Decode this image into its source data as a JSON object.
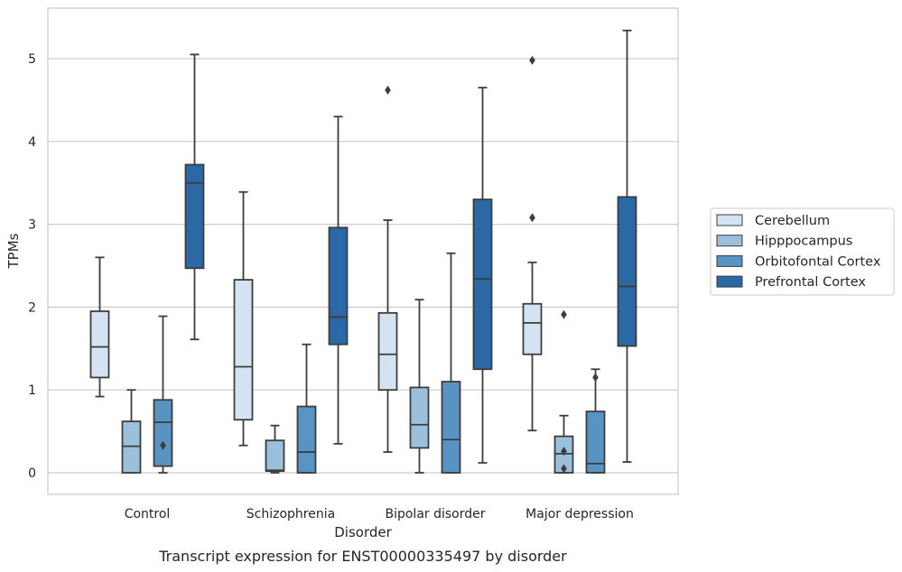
{
  "chart_data": {
    "type": "box",
    "caption": "Transcript expression for ENST00000335497 by disorder",
    "xlabel": "Disorder",
    "ylabel": "TPMs",
    "ylim": [
      -0.25,
      5.6
    ],
    "yticks": [
      0,
      1,
      2,
      3,
      4,
      5
    ],
    "grid": true,
    "legend_position": "right",
    "categories": [
      "Control",
      "Schizophrenia",
      "Bipolar disorder",
      "Major depression"
    ],
    "series": [
      {
        "name": "Cerebellum",
        "color": "#d4e3f2",
        "boxes": [
          {
            "whislo": 0.92,
            "q1": 1.15,
            "med": 1.52,
            "q3": 1.95,
            "whishi": 2.6,
            "fliers": []
          },
          {
            "whislo": 0.33,
            "q1": 0.64,
            "med": 1.28,
            "q3": 2.33,
            "whishi": 3.39,
            "fliers": []
          },
          {
            "whislo": 0.25,
            "q1": 1.0,
            "med": 1.43,
            "q3": 1.93,
            "whishi": 3.05,
            "fliers": [
              4.62
            ]
          },
          {
            "whislo": 0.51,
            "q1": 1.43,
            "med": 1.81,
            "q3": 2.04,
            "whishi": 2.54,
            "fliers": [
              3.08,
              4.98
            ]
          }
        ]
      },
      {
        "name": "Hipppocampus",
        "color": "#9ac0dc",
        "boxes": [
          {
            "whislo": 0.0,
            "q1": 0.0,
            "med": 0.32,
            "q3": 0.62,
            "whishi": 1.0,
            "fliers": []
          },
          {
            "whislo": 0.0,
            "q1": 0.02,
            "med": 0.03,
            "q3": 0.39,
            "whishi": 0.57,
            "fliers": []
          },
          {
            "whislo": 0.0,
            "q1": 0.3,
            "med": 0.58,
            "q3": 1.03,
            "whishi": 2.09,
            "fliers": []
          },
          {
            "whislo": 0.0,
            "q1": 0.0,
            "med": 0.23,
            "q3": 0.44,
            "whishi": 0.69,
            "fliers": [
              0.05,
              0.26,
              1.91
            ]
          }
        ]
      },
      {
        "name": "Orbitofontal Cortex",
        "color": "#5894c3",
        "boxes": [
          {
            "whislo": 0.0,
            "q1": 0.08,
            "med": 0.61,
            "q3": 0.88,
            "whishi": 1.89,
            "fliers": [
              0.33
            ]
          },
          {
            "whislo": 0.0,
            "q1": 0.0,
            "med": 0.25,
            "q3": 0.8,
            "whishi": 1.55,
            "fliers": []
          },
          {
            "whislo": 0.0,
            "q1": 0.0,
            "med": 0.4,
            "q3": 1.1,
            "whishi": 2.65,
            "fliers": []
          },
          {
            "whislo": 0.0,
            "q1": 0.0,
            "med": 0.11,
            "q3": 0.74,
            "whishi": 1.25,
            "fliers": [
              1.15
            ]
          }
        ]
      },
      {
        "name": "Prefrontal Cortex",
        "color": "#2a69a6",
        "boxes": [
          {
            "whislo": 1.61,
            "q1": 2.47,
            "med": 3.5,
            "q3": 3.72,
            "whishi": 5.05,
            "fliers": []
          },
          {
            "whislo": 0.35,
            "q1": 1.55,
            "med": 1.88,
            "q3": 2.96,
            "whishi": 4.3,
            "fliers": []
          },
          {
            "whislo": 0.12,
            "q1": 1.25,
            "med": 2.34,
            "q3": 3.3,
            "whishi": 4.65,
            "fliers": []
          },
          {
            "whislo": 0.13,
            "q1": 1.53,
            "med": 2.25,
            "q3": 3.33,
            "whishi": 5.34,
            "fliers": []
          }
        ]
      }
    ]
  }
}
